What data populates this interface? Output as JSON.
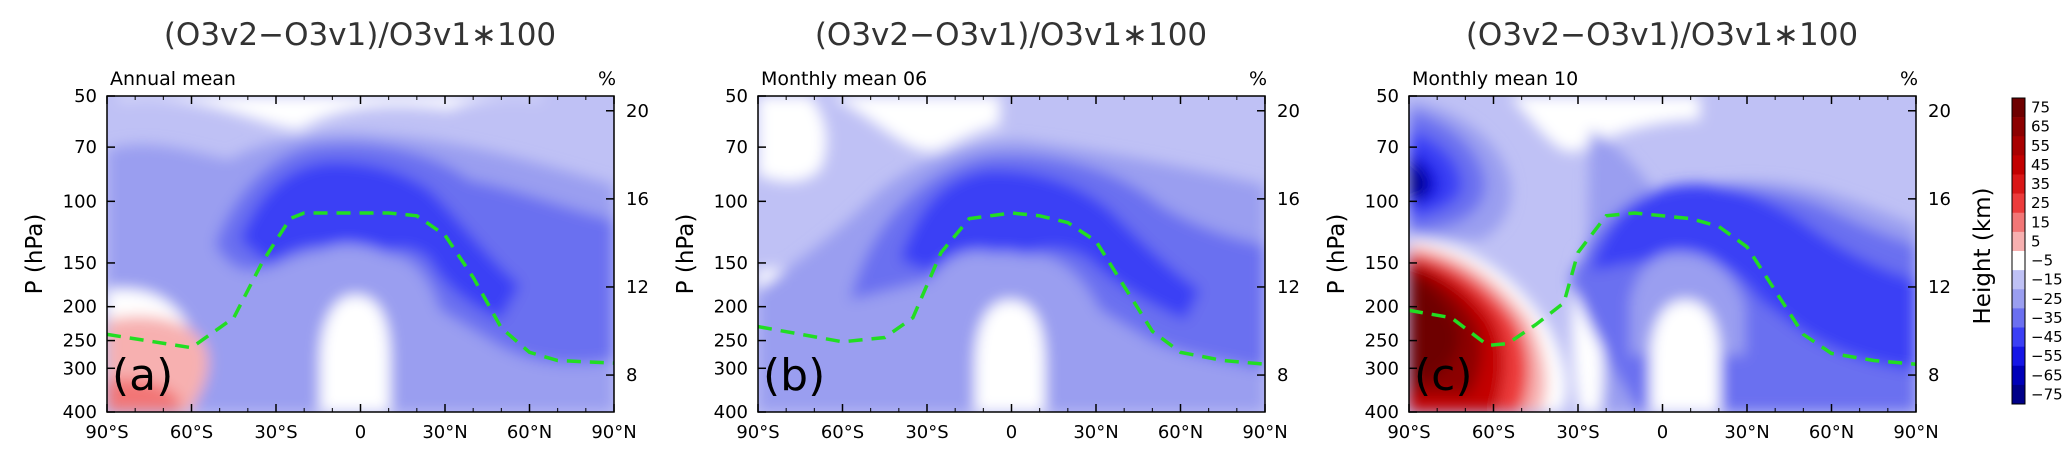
{
  "chart_data": [
    {
      "type": "heatmap",
      "panel_label": "(a)",
      "title": "(O3v2−O3v1)/O3v1∗100",
      "subtitle": "Annual mean",
      "unit_label": "%",
      "ylabel": "P (hPa)",
      "xticks": [
        "90°S",
        "60°S",
        "30°S",
        "0",
        "30°N",
        "60°N",
        "90°N"
      ],
      "xlim": [
        -90,
        90
      ],
      "yticks": [
        50,
        70,
        100,
        150,
        200,
        250,
        300,
        400
      ],
      "ylim": [
        400,
        50
      ],
      "yscale": "log",
      "right_yticks": [
        20,
        16,
        12,
        8
      ],
      "tropopause_line": {
        "style": "dashed",
        "color": "#22dd22",
        "x": [
          -90,
          -60,
          -45,
          -35,
          -25,
          -20,
          -10,
          0,
          10,
          20,
          30,
          40,
          50,
          60,
          70,
          90
        ],
        "y": [
          240,
          262,
          215,
          150,
          112,
          108,
          108,
          108,
          108,
          110,
          125,
          165,
          230,
          270,
          285,
          290
        ]
      },
      "regions": [
        {
          "desc": "southern polar lower stratosphere",
          "value_range": [
            5,
            25
          ]
        },
        {
          "desc": "tropical/subtropical upper troposphere",
          "value_range": [
            -45,
            -25
          ]
        },
        {
          "desc": "equatorial core near 200-300 hPa",
          "value_range": [
            -5,
            5
          ]
        }
      ]
    },
    {
      "type": "heatmap",
      "panel_label": "(b)",
      "title": "(O3v2−O3v1)/O3v1∗100",
      "subtitle": "Monthly mean 06",
      "unit_label": "%",
      "ylabel": "P (hPa)",
      "xticks": [
        "90°S",
        "60°S",
        "30°S",
        "0",
        "30°N",
        "60°N",
        "90°N"
      ],
      "xlim": [
        -90,
        90
      ],
      "yticks": [
        50,
        70,
        100,
        150,
        200,
        250,
        300,
        400
      ],
      "ylim": [
        400,
        50
      ],
      "yscale": "log",
      "right_yticks": [
        20,
        16,
        12,
        8
      ],
      "tropopause_line": {
        "style": "dashed",
        "color": "#22dd22",
        "x": [
          -90,
          -60,
          -45,
          -35,
          -25,
          -15,
          0,
          10,
          20,
          30,
          40,
          50,
          60,
          75,
          90
        ],
        "y": [
          228,
          252,
          245,
          215,
          140,
          112,
          108,
          110,
          115,
          130,
          175,
          235,
          270,
          285,
          292
        ]
      },
      "regions": [
        {
          "desc": "tropical/subtropical upper troposphere",
          "value_range": [
            -45,
            -25
          ]
        },
        {
          "desc": "equatorial core near 200-300 hPa",
          "value_range": [
            -5,
            5
          ]
        }
      ]
    },
    {
      "type": "heatmap",
      "panel_label": "(c)",
      "title": "(O3v2−O3v1)/O3v1∗100",
      "subtitle": "Monthly mean 10",
      "unit_label": "%",
      "ylabel": "P (hPa)",
      "xticks": [
        "90°S",
        "60°S",
        "30°S",
        "0",
        "30°N",
        "60°N",
        "90°N"
      ],
      "xlim": [
        -90,
        90
      ],
      "yticks": [
        50,
        70,
        100,
        150,
        200,
        250,
        300,
        400
      ],
      "ylim": [
        400,
        50
      ],
      "yscale": "log",
      "right_yticks": [
        20,
        16,
        12,
        8
      ],
      "tropopause_line": {
        "style": "dashed",
        "color": "#22dd22",
        "x": [
          -90,
          -75,
          -62,
          -55,
          -45,
          -35,
          -30,
          -20,
          -10,
          0,
          10,
          20,
          30,
          40,
          50,
          60,
          75,
          90
        ],
        "y": [
          205,
          215,
          258,
          255,
          225,
          195,
          140,
          110,
          108,
          110,
          112,
          118,
          135,
          180,
          240,
          272,
          285,
          292
        ]
      },
      "regions": [
        {
          "desc": "southern polar lower stratosphere 70-100 hPa",
          "value_range": [
            -75,
            -45
          ]
        },
        {
          "desc": "southern polar upper troposphere 150-300 hPa",
          "value_range": [
            45,
            75
          ]
        },
        {
          "desc": "tropical/subtropical upper troposphere",
          "value_range": [
            -45,
            -25
          ]
        }
      ]
    }
  ],
  "colorbar": {
    "label": "Height (km)",
    "levels": [
      "75",
      "65",
      "55",
      "45",
      "35",
      "25",
      "15",
      "5",
      "−5",
      "−15",
      "−25",
      "−35",
      "−45",
      "−55",
      "−65",
      "−75"
    ],
    "colors": [
      "#6e0000",
      "#8c0000",
      "#a80000",
      "#c20000",
      "#d91717",
      "#ec3b3b",
      "#f27676",
      "#f7b0b0",
      "#ffffff",
      "#bfc1f5",
      "#9a9ef0",
      "#6b6ff0",
      "#3b3ff5",
      "#1616e6",
      "#0000b8",
      "#000088"
    ]
  }
}
